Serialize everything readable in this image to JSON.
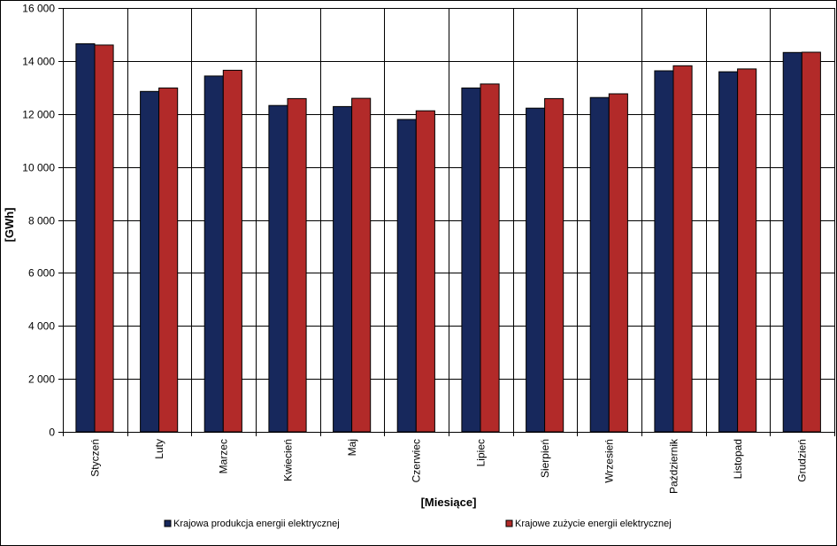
{
  "chart_data": {
    "type": "bar",
    "categories": [
      "Styczeń",
      "Luty",
      "Marzec",
      "Kwiecień",
      "Maj",
      "Czerwiec",
      "Lipiec",
      "Sierpień",
      "Wrzesień",
      "Październik",
      "Listopad",
      "Grudzień"
    ],
    "series": [
      {
        "name": "Krajowa produkcja energii elektrycznej",
        "color": "#17285C",
        "values": [
          14650,
          12850,
          13430,
          12320,
          12280,
          11790,
          12980,
          12220,
          12620,
          13630,
          13590,
          14320
        ]
      },
      {
        "name": "Krajowe zużycie energii elektrycznej",
        "color": "#B22A29",
        "values": [
          14600,
          12980,
          13650,
          12580,
          12590,
          12120,
          13130,
          12580,
          12760,
          13820,
          13700,
          14330
        ]
      }
    ],
    "title": "",
    "xlabel": "[Miesiące]",
    "ylabel": "[GWh]",
    "ylim": [
      0,
      16000
    ],
    "yticks": [
      0,
      2000,
      4000,
      6000,
      8000,
      10000,
      12000,
      14000,
      16000
    ],
    "ytick_labels": [
      "0",
      "2 000",
      "4 000",
      "6 000",
      "8 000",
      "10 000",
      "12 000",
      "14 000",
      "16 000"
    ],
    "grid": true,
    "legend_position": "bottom"
  }
}
